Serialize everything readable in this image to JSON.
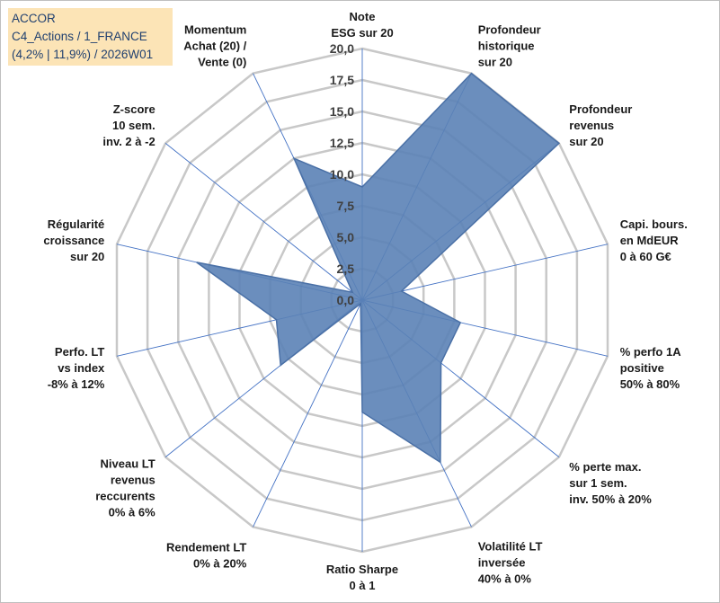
{
  "title": {
    "line1": "ACCOR",
    "line2": "C4_Actions / 1_FRANCE",
    "line3": "(4,2% | 11,9%) / 2026W01"
  },
  "colors": {
    "fill": "#5b82b6",
    "stroke": "#4a70a6",
    "grid": "#c8c8c8",
    "spoke": "#4472c4",
    "title_bg": "#fce4b6"
  },
  "chart_data": {
    "type": "radar",
    "rmin": 0,
    "rmax": 20,
    "ticks": [
      "0,0",
      "2,5",
      "5,0",
      "7,5",
      "10,0",
      "12,5",
      "15,0",
      "17,5",
      "20,0"
    ],
    "axes": [
      {
        "label": [
          "Note",
          "ESG sur 20"
        ],
        "value": 9.0
      },
      {
        "label": [
          "Profondeur",
          "historique",
          "sur 20"
        ],
        "value": 20.0
      },
      {
        "label": [
          "Profondeur",
          "revenus",
          "sur 20"
        ],
        "value": 20.0
      },
      {
        "label": [
          "Capi. bours.",
          "en MdEUR",
          "0 à 60 G€"
        ],
        "value": 3.2
      },
      {
        "label": [
          "% perfo 1A",
          "positive",
          "50% à 80%"
        ],
        "value": 8.0
      },
      {
        "label": [
          "% perte max.",
          "sur 1 sem.",
          "inv. 50% à 20%"
        ],
        "value": 8.0
      },
      {
        "label": [
          "Volatilité LT",
          "inversée",
          "40% à 0%"
        ],
        "value": 14.3
      },
      {
        "label": [
          "Ratio Sharpe",
          "0 à 1"
        ],
        "value": 8.9
      },
      {
        "label": [
          "Rendement LT",
          "0% à 20%"
        ],
        "value": 0.3
      },
      {
        "label": [
          "Niveau LT",
          "revenus",
          "reccurents",
          "0% à 6%"
        ],
        "value": 8.3
      },
      {
        "label": [
          "Perfo. LT",
          "vs index",
          "-8% à 12%"
        ],
        "value": 7.0
      },
      {
        "label": [
          "Régularité",
          "croissance",
          "sur 20"
        ],
        "value": 13.5
      },
      {
        "label": [
          "Z-score",
          "10 sem.",
          "inv. 2 à -2"
        ],
        "value": 1.0
      },
      {
        "label": [
          "Momentum",
          "Achat (20) /",
          "Vente (0)"
        ],
        "value": 12.5
      }
    ]
  }
}
